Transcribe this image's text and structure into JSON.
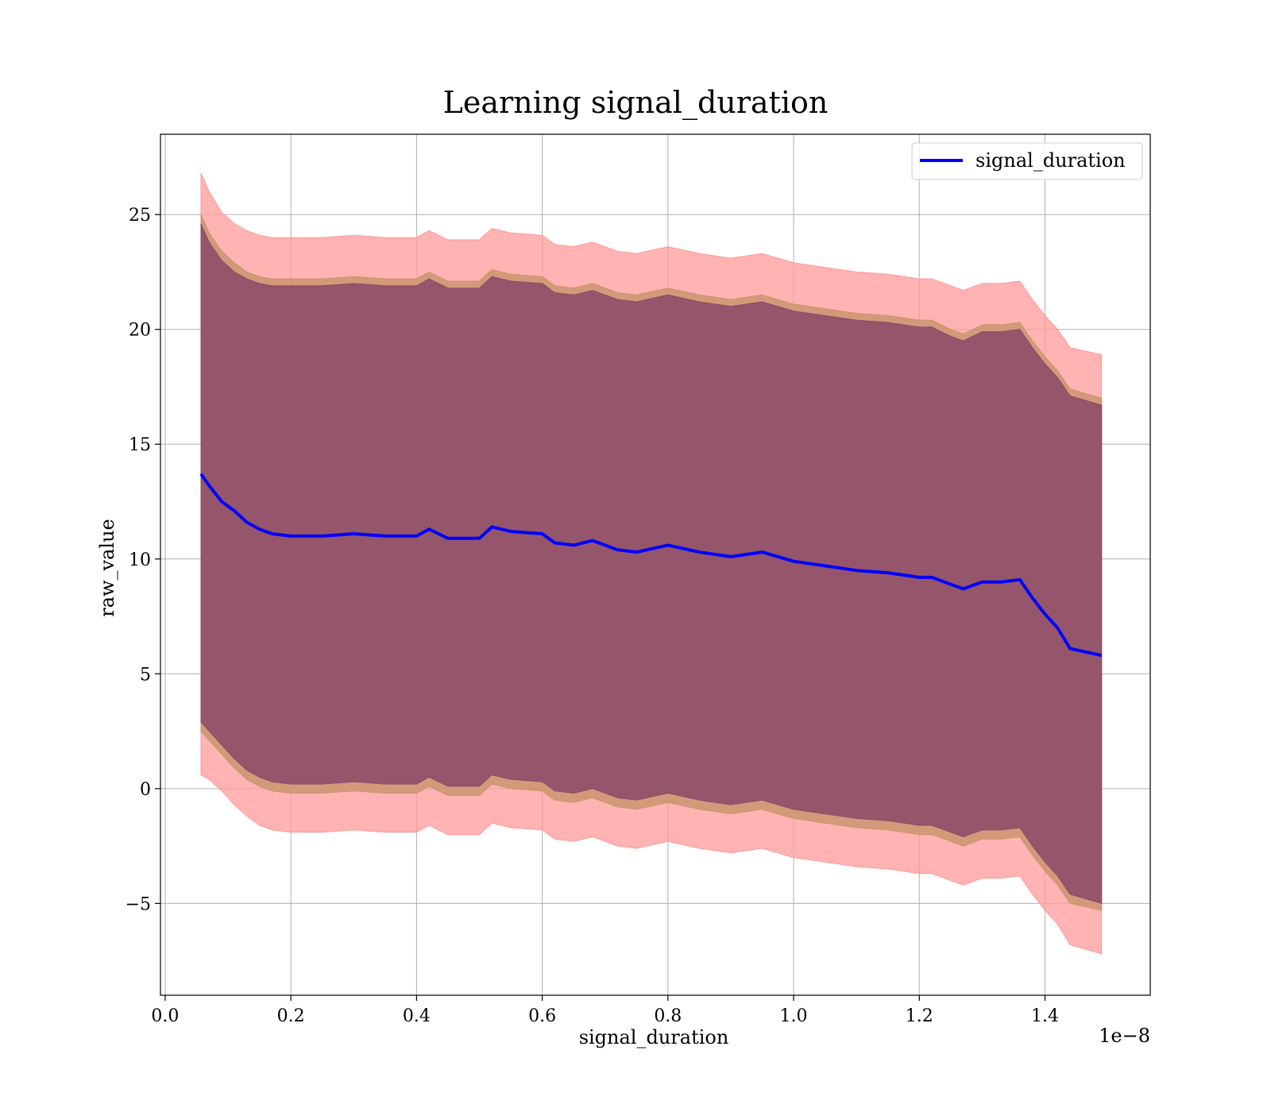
{
  "chart_data": {
    "type": "line",
    "title": "Learning signal_duration",
    "xlabel": "signal_duration",
    "ylabel": "raw_value",
    "x_offset_label": "1e−8",
    "xlim": [
      -0.0075,
      1.5675
    ],
    "ylim": [
      -9,
      28.5
    ],
    "x_ticks": [
      0.0,
      0.2,
      0.4,
      0.6,
      0.8,
      1.0,
      1.2,
      1.4
    ],
    "x_tick_labels": [
      "0.0",
      "0.2",
      "0.4",
      "0.6",
      "0.8",
      "1.0",
      "1.2",
      "1.4"
    ],
    "y_ticks": [
      -5,
      0,
      5,
      10,
      15,
      20,
      25
    ],
    "y_tick_labels": [
      "−5",
      "0",
      "5",
      "10",
      "15",
      "20",
      "25"
    ],
    "grid": true,
    "legend_position": "top-right",
    "colors": {
      "line": "#0000ff",
      "outer_band": "#ff9999",
      "middle_band": "#c8936b",
      "inner_band": "#8a4a6a"
    },
    "x": [
      0.057,
      0.07,
      0.09,
      0.11,
      0.13,
      0.15,
      0.17,
      0.2,
      0.25,
      0.3,
      0.35,
      0.4,
      0.42,
      0.45,
      0.5,
      0.52,
      0.55,
      0.6,
      0.62,
      0.65,
      0.68,
      0.72,
      0.75,
      0.8,
      0.85,
      0.9,
      0.95,
      1.0,
      1.05,
      1.1,
      1.15,
      1.2,
      1.22,
      1.25,
      1.27,
      1.3,
      1.33,
      1.36,
      1.38,
      1.4,
      1.42,
      1.44,
      1.49
    ],
    "series": [
      {
        "name": "signal_duration",
        "values": [
          13.7,
          13.2,
          12.5,
          12.1,
          11.6,
          11.3,
          11.1,
          11.0,
          11.0,
          11.1,
          11.0,
          11.0,
          11.3,
          10.9,
          10.9,
          11.4,
          11.2,
          11.1,
          10.7,
          10.6,
          10.8,
          10.4,
          10.3,
          10.6,
          10.3,
          10.1,
          10.3,
          9.9,
          9.7,
          9.5,
          9.4,
          9.2,
          9.2,
          8.9,
          8.7,
          9.0,
          9.0,
          9.1,
          8.3,
          7.6,
          7.0,
          6.1,
          5.8
        ]
      }
    ],
    "bands": [
      {
        "upper": [
          26.8,
          26.0,
          25.1,
          24.6,
          24.3,
          24.1,
          24.0,
          24.0,
          24.0,
          24.1,
          24.0,
          24.0,
          24.3,
          23.9,
          23.9,
          24.4,
          24.2,
          24.1,
          23.7,
          23.6,
          23.8,
          23.4,
          23.3,
          23.6,
          23.3,
          23.1,
          23.3,
          22.9,
          22.7,
          22.5,
          22.4,
          22.2,
          22.2,
          21.9,
          21.7,
          22.0,
          22.0,
          22.1,
          21.3,
          20.6,
          20.0,
          19.2,
          18.9
        ],
        "lower": [
          0.6,
          0.4,
          -0.1,
          -0.7,
          -1.2,
          -1.6,
          -1.8,
          -1.9,
          -1.9,
          -1.8,
          -1.9,
          -1.9,
          -1.6,
          -2.0,
          -2.0,
          -1.5,
          -1.7,
          -1.8,
          -2.2,
          -2.3,
          -2.1,
          -2.5,
          -2.6,
          -2.3,
          -2.6,
          -2.8,
          -2.6,
          -3.0,
          -3.2,
          -3.4,
          -3.5,
          -3.7,
          -3.7,
          -4.0,
          -4.2,
          -3.9,
          -3.9,
          -3.8,
          -4.6,
          -5.3,
          -5.9,
          -6.8,
          -7.2
        ],
        "color": "#ff9999"
      },
      {
        "upper": [
          25.0,
          24.2,
          23.4,
          22.9,
          22.5,
          22.3,
          22.2,
          22.2,
          22.2,
          22.3,
          22.2,
          22.2,
          22.5,
          22.1,
          22.1,
          22.6,
          22.4,
          22.3,
          21.9,
          21.8,
          22.0,
          21.6,
          21.5,
          21.8,
          21.5,
          21.3,
          21.5,
          21.1,
          20.9,
          20.7,
          20.6,
          20.4,
          20.4,
          20.0,
          19.8,
          20.2,
          20.2,
          20.3,
          19.5,
          18.8,
          18.2,
          17.4,
          17.0
        ],
        "lower": [
          2.5,
          2.1,
          1.5,
          0.9,
          0.4,
          0.1,
          -0.1,
          -0.2,
          -0.2,
          -0.1,
          -0.2,
          -0.2,
          0.1,
          -0.3,
          -0.3,
          0.2,
          0.0,
          -0.1,
          -0.5,
          -0.6,
          -0.4,
          -0.8,
          -0.9,
          -0.6,
          -0.9,
          -1.1,
          -0.9,
          -1.3,
          -1.5,
          -1.7,
          -1.8,
          -2.0,
          -2.0,
          -2.3,
          -2.5,
          -2.2,
          -2.2,
          -2.1,
          -2.9,
          -3.6,
          -4.2,
          -5.0,
          -5.3
        ],
        "color": "#c8936b"
      },
      {
        "upper": [
          24.6,
          23.8,
          23.0,
          22.5,
          22.2,
          22.0,
          21.9,
          21.9,
          21.9,
          22.0,
          21.9,
          21.9,
          22.2,
          21.8,
          21.8,
          22.3,
          22.1,
          22.0,
          21.6,
          21.5,
          21.7,
          21.3,
          21.2,
          21.5,
          21.2,
          21.0,
          21.2,
          20.8,
          20.6,
          20.4,
          20.3,
          20.1,
          20.1,
          19.7,
          19.5,
          19.9,
          19.9,
          20.0,
          19.2,
          18.5,
          17.9,
          17.1,
          16.7
        ],
        "lower": [
          2.9,
          2.5,
          1.9,
          1.3,
          0.8,
          0.5,
          0.3,
          0.2,
          0.2,
          0.3,
          0.2,
          0.2,
          0.5,
          0.1,
          0.1,
          0.6,
          0.4,
          0.3,
          -0.1,
          -0.2,
          0.0,
          -0.4,
          -0.5,
          -0.2,
          -0.5,
          -0.7,
          -0.5,
          -0.9,
          -1.1,
          -1.3,
          -1.4,
          -1.6,
          -1.6,
          -1.9,
          -2.1,
          -1.8,
          -1.8,
          -1.7,
          -2.5,
          -3.2,
          -3.8,
          -4.6,
          -5.0
        ],
        "color": "#8a4a6a"
      }
    ]
  }
}
